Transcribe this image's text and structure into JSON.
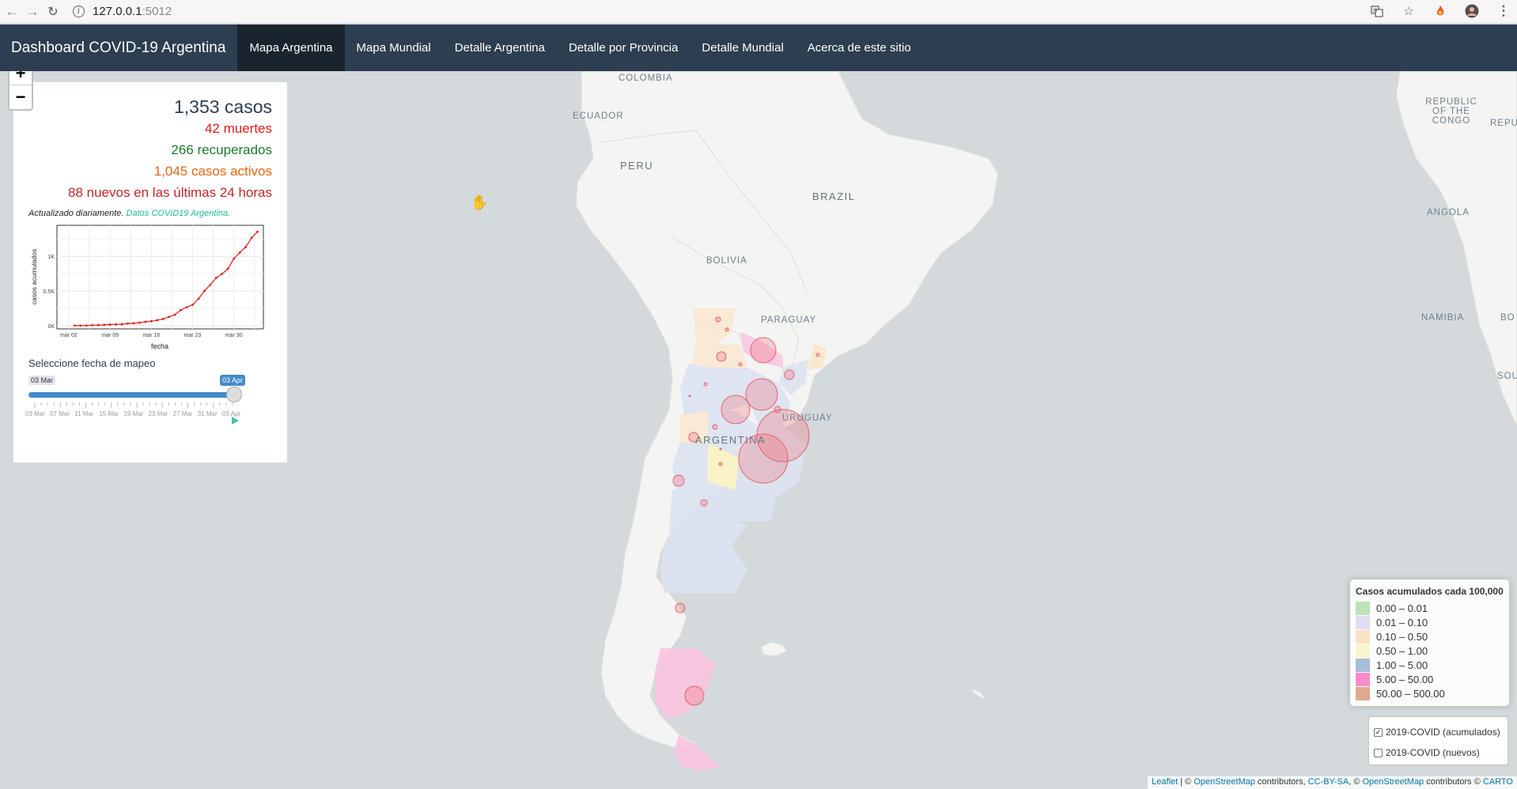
{
  "browser": {
    "url_host": "127.0.0.1",
    "url_port": ":5012",
    "back_icon": "arrow-left-icon",
    "forward_icon": "arrow-right-icon",
    "reload_icon": "reload-icon"
  },
  "navbar": {
    "brand": "Dashboard COVID-19 Argentina",
    "items": [
      {
        "label": "Mapa Argentina",
        "active": true
      },
      {
        "label": "Mapa Mundial"
      },
      {
        "label": "Detalle Argentina"
      },
      {
        "label": "Detalle por Provincia"
      },
      {
        "label": "Detalle Mundial"
      },
      {
        "label": "Acerca de este sitio"
      }
    ]
  },
  "zoom": {
    "in": "+",
    "out": "−"
  },
  "panel": {
    "cases": "1,353 casos",
    "deaths": "42 muertes",
    "recovered": "266 recuperados",
    "active": "1,045 casos activos",
    "new24h": "88 nuevos en las últimas 24 horas",
    "updated": "Actualizado diariamente.",
    "source_link": "Datos COVID19 Argentina.",
    "slider_title": "Seleccione fecha de mapeo",
    "slider": {
      "min_label": "03 Mar",
      "current_label": "03 Apr",
      "tick_labels": [
        "03 Mar",
        "07 Mar",
        "11 Mar",
        "15 Mar",
        "19 Mar",
        "23 Mar",
        "27 Mar",
        "31 Mar",
        "03 Apr"
      ]
    }
  },
  "chart_data": {
    "type": "line",
    "xlabel": "fecha",
    "ylabel": "casos acumulados",
    "x_tick_labels": [
      "mar 02",
      "mar 09",
      "mar 16",
      "mar 23",
      "mar 30"
    ],
    "y_tick_labels": [
      "0K",
      "0.5K",
      "1K"
    ],
    "ylim": [
      0,
      1400
    ],
    "color": "#e41a1c",
    "x": [
      "mar 03",
      "mar 04",
      "mar 05",
      "mar 06",
      "mar 07",
      "mar 08",
      "mar 09",
      "mar 10",
      "mar 11",
      "mar 12",
      "mar 13",
      "mar 14",
      "mar 15",
      "mar 16",
      "mar 17",
      "mar 18",
      "mar 19",
      "mar 20",
      "mar 21",
      "mar 22",
      "mar 23",
      "mar 24",
      "mar 25",
      "mar 26",
      "mar 27",
      "mar 28",
      "mar 29",
      "mar 30",
      "mar 31",
      "abr 01",
      "abr 02",
      "abr 03"
    ],
    "values": [
      1,
      1,
      2,
      8,
      9,
      12,
      17,
      19,
      21,
      31,
      34,
      45,
      56,
      65,
      79,
      97,
      128,
      158,
      225,
      266,
      301,
      387,
      502,
      589,
      690,
      745,
      820,
      966,
      1054,
      1133,
      1265,
      1353
    ]
  },
  "map_labels": [
    {
      "text": "COLOMBIA"
    },
    {
      "text": "ECUADOR"
    },
    {
      "text": "PERU"
    },
    {
      "text": "BRAZIL"
    },
    {
      "text": "BOLIVIA"
    },
    {
      "text": "PARAGUAY"
    },
    {
      "text": "URUGUAY"
    },
    {
      "text": "ARGENTINA"
    },
    {
      "text": "ANGOLA"
    },
    {
      "text": "NAMIBIA"
    },
    {
      "text": "REPUBLIC OF THE CONGO"
    },
    {
      "text": "REPU..."
    },
    {
      "text": "BO"
    },
    {
      "text": "SOU"
    }
  ],
  "legend": {
    "title": "Casos acumulados cada 100,000",
    "items": [
      {
        "label": "0.00 – 0.01",
        "color": "#a6dba0"
      },
      {
        "label": "0.01 – 0.10",
        "color": "#d6d3ec"
      },
      {
        "label": "0.10 – 0.50",
        "color": "#fad8b4"
      },
      {
        "label": "0.50 – 1.00",
        "color": "#fbf3bd"
      },
      {
        "label": "1.00 – 5.00",
        "color": "#8aa9cf"
      },
      {
        "label": "5.00 – 50.00",
        "color": "#f767b8"
      },
      {
        "label": "50.00 – 500.00",
        "color": "#d38f68"
      }
    ]
  },
  "layers": [
    {
      "label": "2019-COVID (acumulados)",
      "checked": true
    },
    {
      "label": "2019-COVID (nuevos)",
      "checked": false
    }
  ],
  "attribution": {
    "leaflet": "Leaflet",
    "sep1": " | © ",
    "osm1": "OpenStreetMap",
    "t1": " contributors, ",
    "ccbysa": "CC-BY-SA",
    "t2": ", © ",
    "osm2": "OpenStreetMap",
    "t3": " contributors © ",
    "carto": "CARTO"
  }
}
